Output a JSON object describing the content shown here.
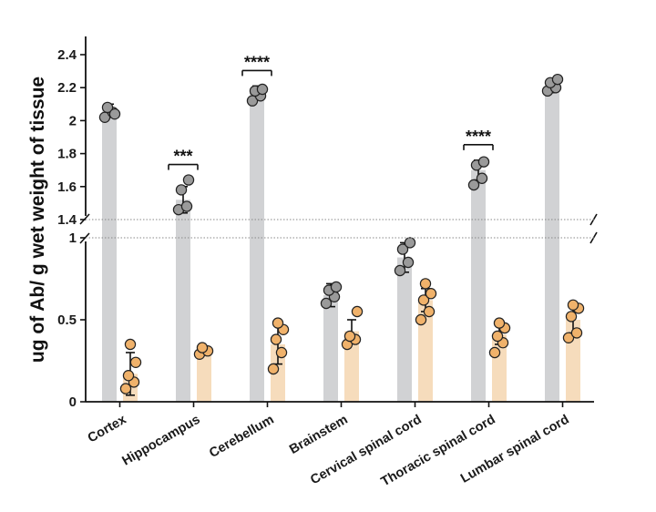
{
  "chart_data": {
    "type": "bar",
    "ylabel": "ug of Ab/ g wet weight of tissue",
    "categories": [
      "Cortex",
      "Hippocampus",
      "Cerebellum",
      "Brainstem",
      "Cervical spinal cord",
      "Thoracic spinal cord",
      "Lumbar spinal cord"
    ],
    "y_axis_broken": true,
    "y_break": [
      1.0,
      1.4
    ],
    "y_ticks_lower": [
      0,
      0.5,
      1
    ],
    "y_ticks_upper": [
      1.4,
      1.6,
      1.8,
      2,
      2.2,
      2.4
    ],
    "ylim": [
      0,
      2.45
    ],
    "series": [
      {
        "color": "#d1d2d4",
        "point_color": "#9a9a9a",
        "values": [
          2.06,
          1.52,
          2.17,
          0.65,
          0.88,
          1.7,
          2.21
        ],
        "errors": [
          0.04,
          0.08,
          0.04,
          0.07,
          0.09,
          0.06,
          0.04
        ],
        "points": [
          [
            2.02,
            2.05,
            2.08,
            2.04
          ],
          [
            1.46,
            1.48,
            1.58,
            1.64
          ],
          [
            2.12,
            2.15,
            2.18,
            2.19
          ],
          [
            0.6,
            0.64,
            0.68,
            0.7
          ],
          [
            0.8,
            0.85,
            0.93,
            0.97
          ],
          [
            1.61,
            1.65,
            1.73,
            1.75
          ],
          [
            2.18,
            2.2,
            2.23,
            2.25
          ]
        ]
      },
      {
        "color": "#f6dcbc",
        "point_color": "#f0b26b",
        "values": [
          0.17,
          0.31,
          0.35,
          0.43,
          0.62,
          0.41,
          0.5
        ],
        "errors": [
          0.13,
          0.02,
          0.12,
          0.07,
          0.07,
          0.06,
          0.08
        ],
        "points": [
          [
            0.08,
            0.12,
            0.16,
            0.24,
            0.35
          ],
          [
            0.29,
            0.31,
            0.33
          ],
          [
            0.2,
            0.3,
            0.38,
            0.44,
            0.48
          ],
          [
            0.35,
            0.38,
            0.4,
            0.55
          ],
          [
            0.5,
            0.55,
            0.62,
            0.66,
            0.72
          ],
          [
            0.3,
            0.36,
            0.4,
            0.45,
            0.48
          ],
          [
            0.39,
            0.42,
            0.52,
            0.57,
            0.59
          ]
        ]
      }
    ],
    "significance": [
      {
        "category": "Hippocampus",
        "label": "***"
      },
      {
        "category": "Cerebellum",
        "label": "****"
      },
      {
        "category": "Thoracic spinal cord",
        "label": "****"
      }
    ]
  }
}
